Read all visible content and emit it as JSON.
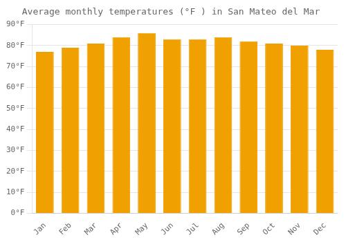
{
  "chart_data": {
    "type": "bar",
    "title": "Average monthly temperatures (°F ) in San Mateo del Mar",
    "categories": [
      "Jan",
      "Feb",
      "Mar",
      "Apr",
      "May",
      "Jun",
      "Jul",
      "Aug",
      "Sep",
      "Oct",
      "Nov",
      "Dec"
    ],
    "values": [
      77,
      79,
      81,
      84,
      86,
      83,
      83,
      84,
      82,
      81,
      80,
      78
    ],
    "color": "#F0A000",
    "ylim": [
      0,
      90
    ],
    "yticks": [
      {
        "value": 0,
        "label": "0°F"
      },
      {
        "value": 10,
        "label": "10°F"
      },
      {
        "value": 20,
        "label": "20°F"
      },
      {
        "value": 30,
        "label": "30°F"
      },
      {
        "value": 40,
        "label": "40°F"
      },
      {
        "value": 50,
        "label": "50°F"
      },
      {
        "value": 60,
        "label": "60°F"
      },
      {
        "value": 70,
        "label": "70°F"
      },
      {
        "value": 80,
        "label": "80°F"
      },
      {
        "value": 90,
        "label": "90°F"
      }
    ],
    "grid": true
  }
}
